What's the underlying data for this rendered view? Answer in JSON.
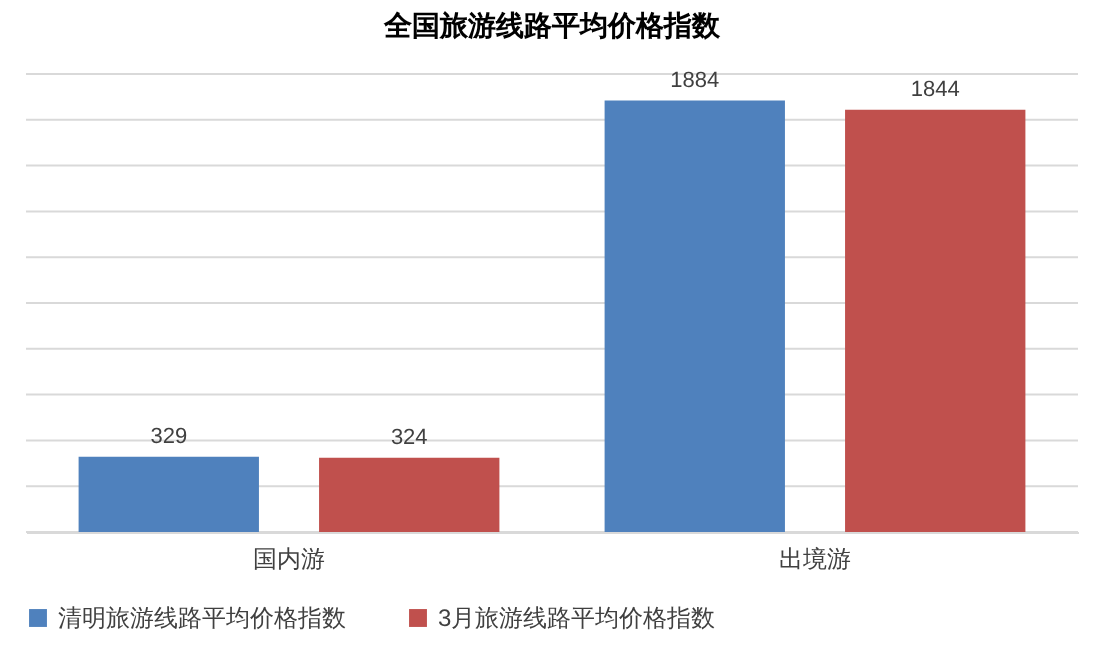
{
  "chart_data": {
    "type": "bar",
    "title": "全国旅游线路平均价格指数",
    "categories": [
      "国内游",
      "出境游"
    ],
    "series": [
      {
        "name": "清明旅游线路平均价格指数",
        "color": "#4f81bd",
        "values": [
          329,
          1884
        ]
      },
      {
        "name": "3月旅游线路平均价格指数",
        "color": "#c0504d",
        "values": [
          324,
          1844
        ]
      }
    ],
    "ylim": [
      0,
      2000
    ],
    "yticks": [
      {
        "value": 0,
        "label": null
      },
      {
        "value": 200,
        "label": null
      },
      {
        "value": 400,
        "label": null
      },
      {
        "value": 600,
        "label": null
      },
      {
        "value": 800,
        "label": null
      },
      {
        "value": 1000,
        "label": null
      },
      {
        "value": 1200,
        "label": null
      },
      {
        "value": 1400,
        "label": null
      },
      {
        "value": 1600,
        "label": null
      },
      {
        "value": 1800,
        "label": null
      },
      {
        "value": 2000,
        "label": null
      }
    ],
    "tick_labels": "x",
    "grid": "y",
    "legend": "bottom",
    "data_labels": true
  }
}
